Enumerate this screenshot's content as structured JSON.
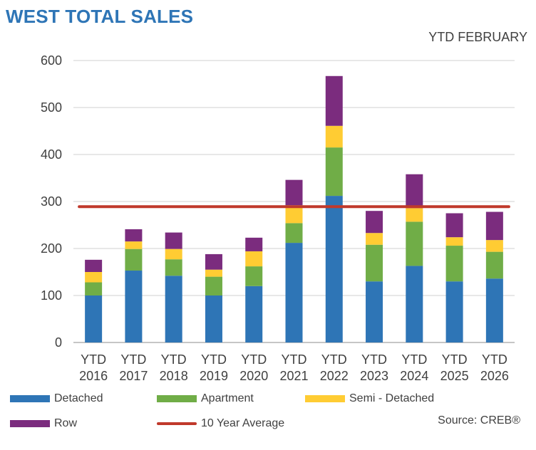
{
  "chart_data": {
    "type": "bar",
    "stacked": true,
    "title": "WEST TOTAL SALES",
    "subtitle": "YTD  FEBRUARY",
    "source": "Source: CREB®",
    "categories": [
      [
        "YTD",
        "2016"
      ],
      [
        "YTD",
        "2017"
      ],
      [
        "YTD",
        "2018"
      ],
      [
        "YTD",
        "2019"
      ],
      [
        "YTD",
        "2020"
      ],
      [
        "YTD",
        "2021"
      ],
      [
        "YTD",
        "2022"
      ],
      [
        "YTD",
        "2023"
      ],
      [
        "YTD",
        "2024"
      ],
      [
        "YTD",
        "2025"
      ],
      [
        "YTD",
        "2026"
      ]
    ],
    "ylim": [
      0,
      600
    ],
    "yticks": [
      0,
      100,
      200,
      300,
      400,
      500,
      600
    ],
    "series": [
      {
        "name": "Detached",
        "color": "#2e75b6",
        "values": [
          100,
          153,
          142,
          100,
          120,
          212,
          312,
          130,
          163,
          130,
          136
        ]
      },
      {
        "name": "Apartment",
        "color": "#70ad47",
        "values": [
          28,
          46,
          35,
          40,
          42,
          42,
          103,
          78,
          94,
          76,
          57
        ]
      },
      {
        "name": "Semi - Detached",
        "color": "#ffcc33",
        "values": [
          22,
          16,
          22,
          15,
          32,
          38,
          46,
          25,
          29,
          18,
          25
        ]
      },
      {
        "name": "Row",
        "color": "#7b2c7e",
        "values": [
          26,
          26,
          35,
          33,
          29,
          54,
          106,
          47,
          72,
          51,
          60
        ]
      }
    ],
    "average": {
      "name": "10 Year Average",
      "value": 289,
      "color": "#c0392b"
    }
  }
}
